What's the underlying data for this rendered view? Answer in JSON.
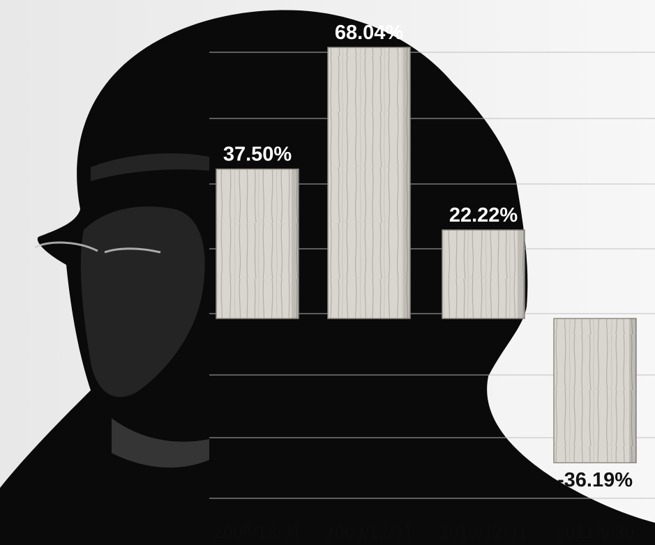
{
  "chart_data": {
    "type": "bar",
    "categories": [
      "2008/12/31",
      "2009/12/31",
      "2010/12/31",
      "2011/6/30"
    ],
    "series": [
      {
        "values": [
          37.5,
          68.04,
          22.22,
          -36.19
        ],
        "labels": [
          "37.50%",
          "68.04%",
          "22.22%",
          "-36.19%"
        ]
      }
    ],
    "ylim": [
      -45,
      70
    ],
    "grid": true,
    "legend": "none"
  },
  "colors": {
    "background": "#f2f2f2",
    "silhouette": "#0a0a0a",
    "bar_fill": "#d9d6cf",
    "bar_grain": "#9b978f",
    "grid": "#bdbdbd",
    "label_on_dark": "#ffffff",
    "label_on_light": "#111111"
  }
}
